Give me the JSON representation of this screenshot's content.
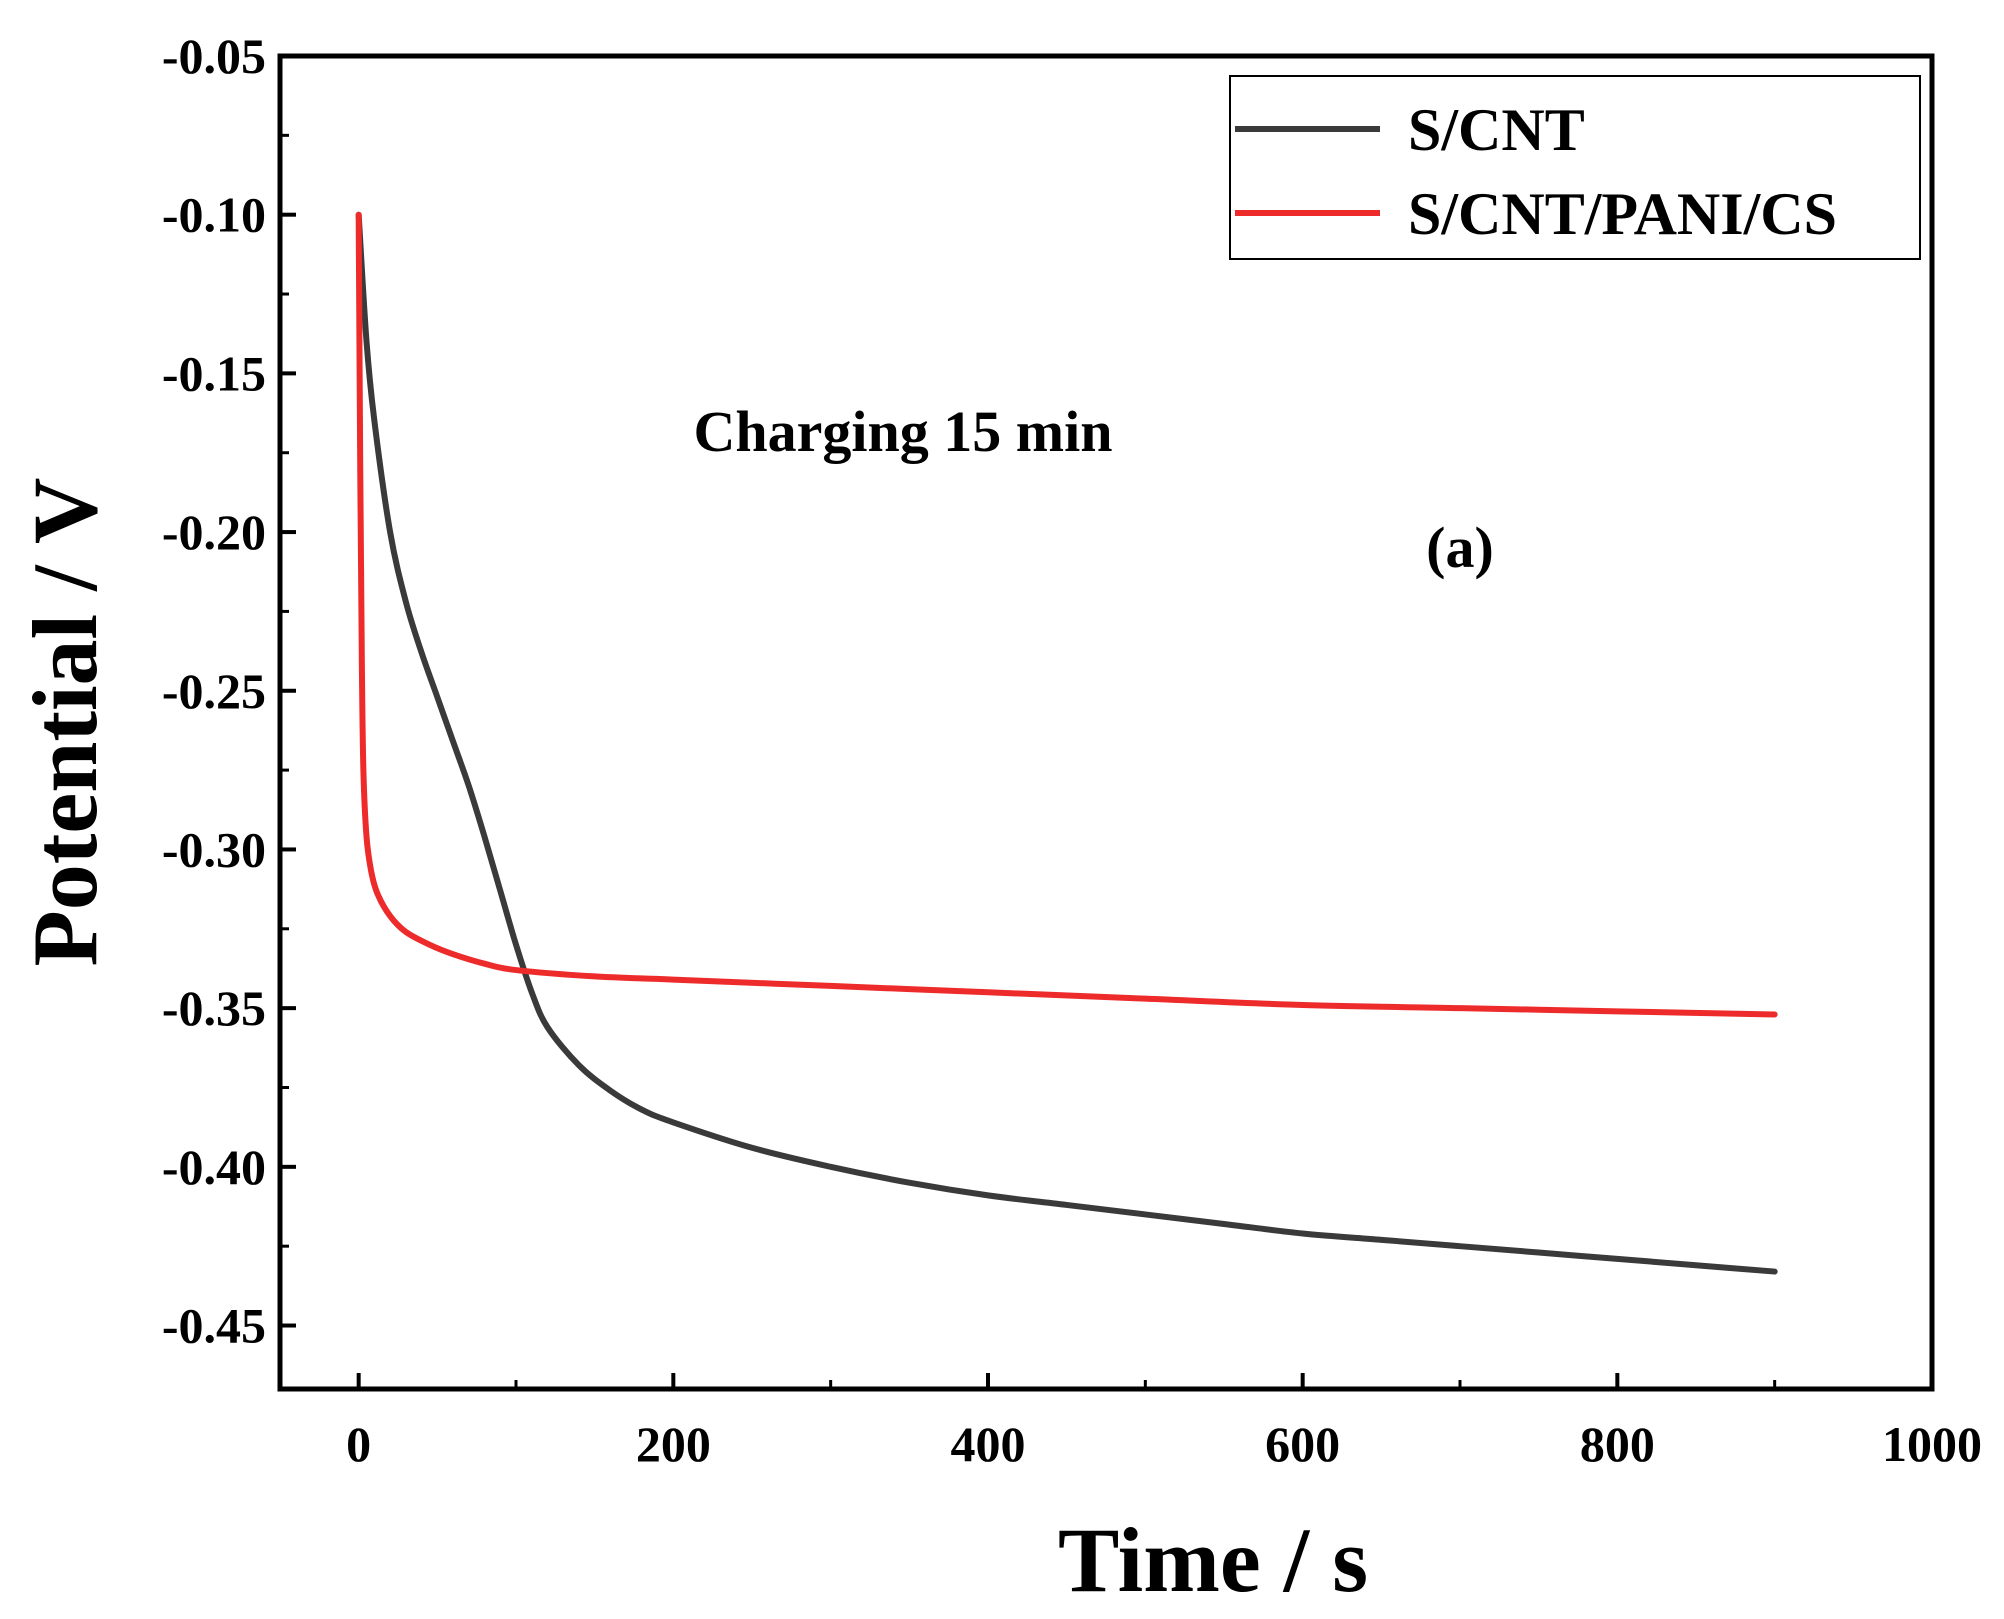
{
  "chart_data": {
    "type": "line",
    "title": "",
    "xlabel": "Time / s",
    "ylabel": "Potential / V",
    "xlim": [
      -50,
      1000
    ],
    "ylim": [
      -0.47,
      -0.05
    ],
    "x_ticks": [
      0,
      200,
      400,
      600,
      800,
      1000
    ],
    "x_tick_labels": [
      "0",
      "200",
      "400",
      "600",
      "800",
      "1000"
    ],
    "y_ticks": [
      -0.05,
      -0.1,
      -0.15,
      -0.2,
      -0.25,
      -0.3,
      -0.35,
      -0.4,
      -0.45
    ],
    "y_tick_labels": [
      "-0.05",
      "-0.10",
      "-0.15",
      "-0.20",
      "-0.25",
      "-0.30",
      "-0.35",
      "-0.40",
      "-0.45"
    ],
    "grid": false,
    "legend_position": "top-right",
    "annotations": [
      {
        "text": "Charging 15 min"
      },
      {
        "text": "(a)"
      }
    ],
    "series": [
      {
        "name": "S/CNT",
        "color": "#3a3a3a",
        "x": [
          0,
          5,
          10,
          20,
          30,
          40,
          50,
          60,
          70,
          80,
          90,
          100,
          110,
          120,
          140,
          160,
          180,
          200,
          250,
          300,
          350,
          400,
          450,
          500,
          550,
          600,
          650,
          700,
          750,
          800,
          850,
          900
        ],
        "y": [
          -0.1,
          -0.14,
          -0.165,
          -0.2,
          -0.222,
          -0.238,
          -0.252,
          -0.266,
          -0.28,
          -0.296,
          -0.313,
          -0.33,
          -0.345,
          -0.356,
          -0.368,
          -0.376,
          -0.382,
          -0.386,
          -0.394,
          -0.4,
          -0.405,
          -0.409,
          -0.412,
          -0.415,
          -0.418,
          -0.421,
          -0.423,
          -0.425,
          -0.427,
          -0.429,
          -0.431,
          -0.433
        ]
      },
      {
        "name": "S/CNT/PANI/CS",
        "color": "#ee2b2b",
        "x": [
          0,
          1,
          2,
          3,
          5,
          8,
          12,
          20,
          30,
          45,
          60,
          80,
          100,
          150,
          200,
          300,
          400,
          500,
          600,
          700,
          800,
          900
        ],
        "y": [
          -0.1,
          -0.18,
          -0.24,
          -0.275,
          -0.296,
          -0.307,
          -0.314,
          -0.321,
          -0.326,
          -0.33,
          -0.333,
          -0.336,
          -0.338,
          -0.34,
          -0.341,
          -0.343,
          -0.345,
          -0.347,
          -0.349,
          -0.35,
          -0.351,
          -0.352
        ]
      }
    ]
  }
}
